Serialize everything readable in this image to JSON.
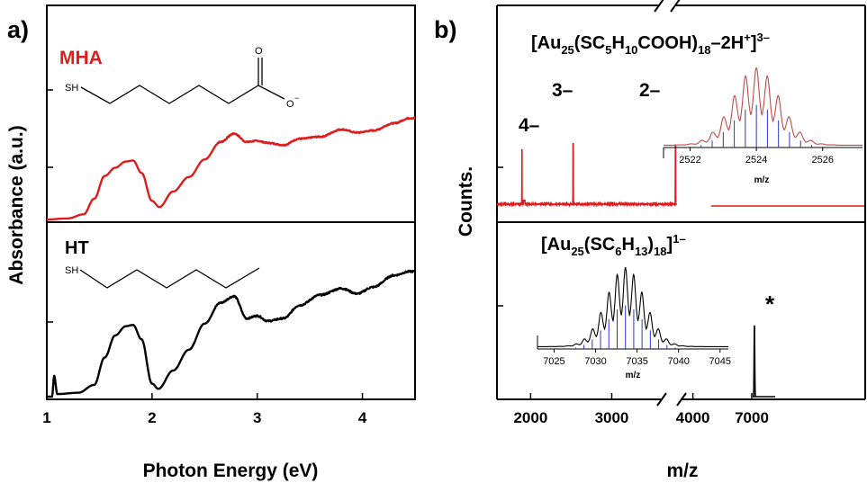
{
  "colors": {
    "mha": "#e01b1b",
    "ht": "#000000",
    "inset_line": "#c24a4a",
    "stick": "#2a37c8",
    "axis": "#000000"
  },
  "panel_a": {
    "label": "a)",
    "xlabel": "Photon Energy (eV)",
    "ylabel": "Absorbance (a.u.)",
    "mha_label": "MHA",
    "ht_label": "HT",
    "mha_struct_sh": "SH",
    "mha_struct_o": "O",
    "mha_struct_o_minus": "O",
    "mha_struct_charge": "−",
    "ht_struct_sh": "SH"
  },
  "panel_b": {
    "label": "b)",
    "xlabel": "m/z",
    "ylabel": "Counts.",
    "top_formula": {
      "t1": "[Au",
      "s1": "25",
      "t2": "(SC",
      "s2": "5",
      "t3": "H",
      "s3": "10",
      "t4": "COOH)",
      "s4": "18",
      "t5": "–2H",
      "p5": "+",
      "t6": "]",
      "p6": "3–"
    },
    "bottom_formula": {
      "t1": "[Au",
      "s1": "25",
      "t2": "(SC",
      "s2": "6",
      "t3": "H",
      "s3": "13",
      "t4": ")",
      "s4": "18",
      "t5": "]",
      "p5": "1–"
    },
    "charge_labels": [
      "4–",
      "3–",
      "2–"
    ],
    "star": "*",
    "inset_top_xlabel": "m/z",
    "inset_bottom_xlabel": "m/z"
  },
  "chart_data": [
    {
      "type": "line",
      "panel": "a",
      "xlabel": "Photon Energy (eV)",
      "ylabel": "Absorbance (a.u.)",
      "xlim": [
        1.0,
        4.5
      ],
      "xticks": [
        1,
        2,
        3,
        4
      ],
      "series": [
        {
          "name": "MHA",
          "x": [
            1.0,
            1.2,
            1.35,
            1.45,
            1.55,
            1.65,
            1.75,
            1.82,
            1.9,
            2.0,
            2.07,
            2.2,
            2.35,
            2.5,
            2.65,
            2.78,
            2.9,
            3.0,
            3.1,
            3.25,
            3.4,
            3.6,
            3.8,
            3.95,
            4.1,
            4.3,
            4.45,
            4.5
          ],
          "y": [
            0.0,
            0.01,
            0.05,
            0.2,
            0.42,
            0.5,
            0.56,
            0.57,
            0.45,
            0.18,
            0.12,
            0.27,
            0.41,
            0.58,
            0.75,
            0.83,
            0.75,
            0.76,
            0.74,
            0.72,
            0.78,
            0.8,
            0.87,
            0.84,
            0.86,
            0.93,
            0.98,
            0.98
          ]
        },
        {
          "name": "HT",
          "x": [
            1.0,
            1.05,
            1.07,
            1.1,
            1.3,
            1.45,
            1.55,
            1.65,
            1.75,
            1.82,
            1.9,
            2.0,
            2.06,
            2.2,
            2.35,
            2.5,
            2.65,
            2.78,
            2.9,
            3.0,
            3.1,
            3.25,
            3.4,
            3.6,
            3.8,
            3.95,
            4.1,
            4.3,
            4.45,
            4.5
          ],
          "y": [
            0.0,
            0.0,
            0.16,
            0.02,
            0.03,
            0.09,
            0.3,
            0.47,
            0.54,
            0.55,
            0.44,
            0.1,
            0.06,
            0.2,
            0.36,
            0.56,
            0.72,
            0.77,
            0.6,
            0.62,
            0.58,
            0.6,
            0.7,
            0.78,
            0.83,
            0.79,
            0.84,
            0.93,
            0.96,
            0.96
          ]
        }
      ]
    },
    {
      "type": "line",
      "panel": "b",
      "xlabel": "m/z",
      "ylabel": "Counts.",
      "xticks": [
        2000,
        3000,
        4000,
        7000
      ],
      "axis_break": [
        4000,
        7000
      ],
      "series": [
        {
          "name": "[Au25(SC5H10COOH)18–2H+]3–",
          "peaks": [
            {
              "x": 1893,
              "y": 0.51,
              "label": "4–"
            },
            {
              "x": 2524,
              "y": 0.92,
              "label": "3–"
            },
            {
              "x": 3786,
              "y": 0.9,
              "label": "2–"
            }
          ]
        },
        {
          "name": "[Au25(SC6H13)18]1–",
          "peaks": [
            {
              "x": 7033,
              "y": 0.9,
              "label": "*"
            }
          ]
        }
      ]
    },
    {
      "type": "line",
      "panel": "b-inset-top",
      "xlabel": "m/z",
      "xlim": [
        2521.2,
        2527.2
      ],
      "xticks": [
        2522,
        2524,
        2526
      ],
      "center": 2524.0,
      "spacing": 0.333,
      "envelope_sigma": 0.7,
      "peak_count": 13
    },
    {
      "type": "line",
      "panel": "b-inset-bottom",
      "xlabel": "m/z",
      "xlim": [
        7023,
        7046
      ],
      "xticks": [
        7025,
        7030,
        7035,
        7040,
        7045
      ],
      "center": 7033.6,
      "spacing": 1.0,
      "envelope_sigma": 2.3,
      "peak_count": 12
    }
  ]
}
